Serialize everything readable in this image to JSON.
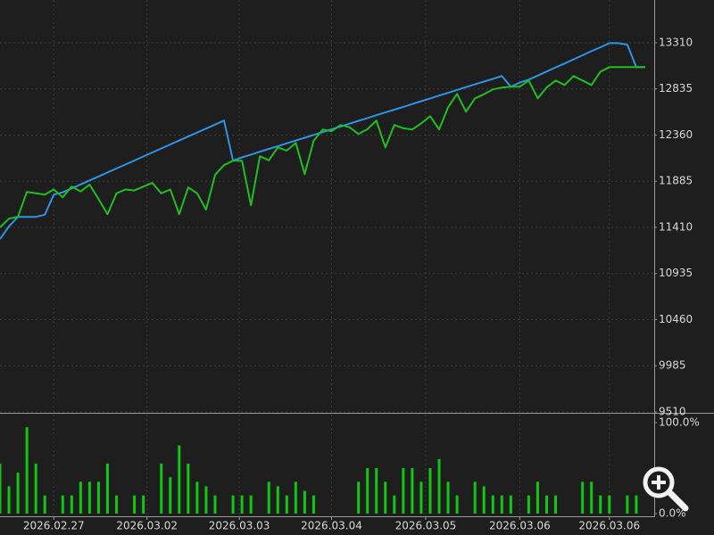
{
  "chart_data": [
    {
      "type": "line",
      "xlim": [
        0,
        73
      ],
      "xticks": [
        {
          "value": 6,
          "label": "2026.02.27"
        },
        {
          "value": 16.4,
          "label": "2026.03.02"
        },
        {
          "value": 26.7,
          "label": "2026.03.03"
        },
        {
          "value": 37,
          "label": "2026.03.04"
        },
        {
          "value": 47.5,
          "label": "2026.03.05"
        },
        {
          "value": 58,
          "label": "2026.03.06"
        },
        {
          "value": 68,
          "label": "2026.03.06"
        }
      ],
      "ylim": [
        9510,
        13750
      ],
      "yticks": [
        9510,
        9985,
        10460,
        10935,
        11410,
        11885,
        12360,
        12835,
        13310
      ],
      "grid": true,
      "series": [
        {
          "color": "#2f93e6",
          "values": [
            11289,
            11420,
            11518,
            11518,
            11518,
            11540,
            11747,
            11770,
            11811,
            11852,
            11893,
            11934,
            11975,
            12016,
            12057,
            12098,
            12140,
            12181,
            12222,
            12263,
            12304,
            12345,
            12386,
            12427,
            12468,
            12509,
            12096,
            12130,
            12159,
            12188,
            12217,
            12246,
            12275,
            12304,
            12332,
            12361,
            12390,
            12419,
            12448,
            12477,
            12506,
            12535,
            12564,
            12593,
            12621,
            12650,
            12679,
            12708,
            12737,
            12766,
            12795,
            12824,
            12853,
            12882,
            12910,
            12939,
            12968,
            12857,
            12900,
            12930,
            12972,
            13014,
            13056,
            13097,
            13139,
            13181,
            13223,
            13264,
            13306,
            13306,
            13290,
            13059,
            13059
          ]
        },
        {
          "color": "#1fbf1f",
          "values": [
            11410,
            11500,
            11518,
            11775,
            11760,
            11747,
            11800,
            11720,
            11830,
            11780,
            11850,
            11700,
            11546,
            11760,
            11800,
            11790,
            11830,
            11867,
            11760,
            11800,
            11546,
            11821,
            11760,
            11592,
            11950,
            12050,
            12096,
            12096,
            11637,
            12142,
            12100,
            12233,
            12200,
            12279,
            11958,
            12300,
            12417,
            12400,
            12463,
            12440,
            12371,
            12420,
            12509,
            12233,
            12463,
            12430,
            12417,
            12480,
            12554,
            12417,
            12646,
            12784,
            12600,
            12738,
            12780,
            12830,
            12849,
            12857,
            12857,
            12921,
            12738,
            12850,
            12921,
            12875,
            12967,
            12921,
            12875,
            13013,
            13059,
            13059,
            13059,
            13059,
            13059
          ]
        }
      ]
    },
    {
      "type": "bar",
      "xlim": [
        0,
        73
      ],
      "ylim": [
        0,
        100
      ],
      "yticks": [
        {
          "value": 0,
          "label": "0.0%"
        },
        {
          "value": 100,
          "label": "100.0%"
        }
      ],
      "color": "#10c810",
      "values": [
        55,
        30,
        45,
        95,
        55,
        20,
        0,
        20,
        20,
        35,
        35,
        35,
        55,
        20,
        0,
        20,
        20,
        0,
        55,
        40,
        75,
        55,
        35,
        30,
        20,
        0,
        20,
        20,
        20,
        0,
        35,
        30,
        20,
        35,
        25,
        20,
        0,
        0,
        0,
        0,
        35,
        50,
        50,
        35,
        20,
        50,
        50,
        35,
        50,
        60,
        35,
        20,
        0,
        35,
        30,
        20,
        20,
        20,
        0,
        20,
        35,
        20,
        20,
        0,
        0,
        35,
        35,
        20,
        20,
        0,
        20,
        20,
        0
      ]
    }
  ]
}
